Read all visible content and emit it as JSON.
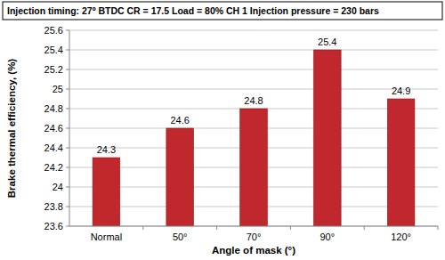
{
  "chart_data": {
    "type": "bar",
    "title": "Injection timing: 27º BTDC CR = 17.5   Load = 80% CH 1 Injection pressure = 230 bars",
    "x_label": "Angle of mask (°)",
    "y_label": "Brake thermal efficiency, (%)",
    "categories": [
      "Normal",
      "50°",
      "70°",
      "90°",
      "120°"
    ],
    "values": [
      24.3,
      24.6,
      24.8,
      25.4,
      24.9
    ],
    "color": "#c0282d",
    "ylim": [
      23.6,
      25.6
    ],
    "yticks": [
      23.6,
      23.8,
      24,
      24.2,
      24.4,
      24.6,
      24.8,
      25,
      25.2,
      25.4,
      25.6
    ],
    "grid": true,
    "data_labels": true
  }
}
